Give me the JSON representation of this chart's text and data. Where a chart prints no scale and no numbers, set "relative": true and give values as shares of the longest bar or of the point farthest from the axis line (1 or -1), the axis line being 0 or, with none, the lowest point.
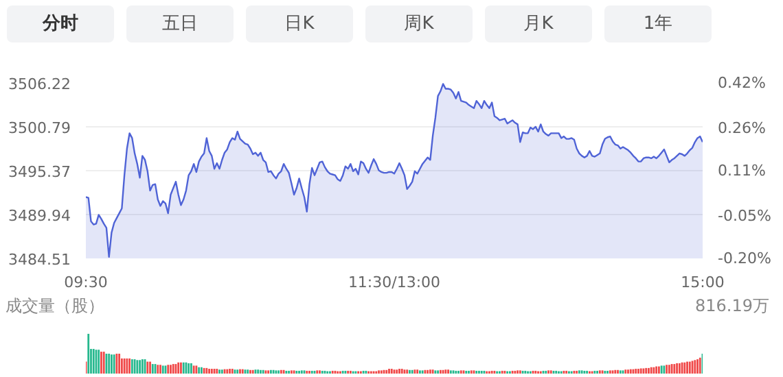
{
  "chart_data": [
    {
      "type": "other",
      "annotations": [
        "分时",
        "五日",
        "日K",
        "周K",
        "月K",
        "1年"
      ]
    },
    {
      "type": "area",
      "color": "#4f63d6",
      "grid": "y",
      "categories": [
        "09:30",
        null,
        null,
        null,
        null,
        null,
        null,
        null,
        null,
        null,
        null,
        null,
        null,
        null,
        null,
        null,
        null,
        null,
        null,
        null,
        null,
        null,
        null,
        null,
        null,
        null,
        null,
        null,
        null,
        null,
        null,
        null,
        null,
        null,
        null,
        null,
        null,
        null,
        null,
        null,
        null,
        null,
        null,
        null,
        null,
        null,
        null,
        null,
        null,
        null,
        null,
        null,
        null,
        null,
        null,
        null,
        null,
        null,
        null,
        null,
        null,
        null,
        null,
        null,
        null,
        null,
        null,
        null,
        null,
        null,
        null,
        null,
        null,
        null,
        null,
        null,
        null,
        null,
        null,
        null,
        null,
        null,
        null,
        null,
        null,
        null,
        null,
        null,
        null,
        null,
        null,
        null,
        null,
        null,
        null,
        null,
        null,
        null,
        null,
        null,
        null,
        null,
        null,
        null,
        null,
        null,
        null,
        null,
        null,
        null,
        null,
        null,
        null,
        null,
        null,
        null,
        null,
        null,
        null,
        null,
        "11:30/13:00",
        null,
        null,
        null,
        null,
        null,
        null,
        null,
        null,
        null,
        null,
        null,
        null,
        null,
        null,
        null,
        null,
        null,
        null,
        null,
        null,
        null,
        null,
        null,
        null,
        null,
        null,
        null,
        null,
        null,
        null,
        null,
        null,
        null,
        null,
        null,
        null,
        null,
        null,
        null,
        null,
        null,
        null,
        null,
        null,
        null,
        null,
        null,
        null,
        null,
        null,
        null,
        null,
        null,
        null,
        null,
        null,
        null,
        null,
        null,
        null,
        null,
        null,
        null,
        null,
        null,
        null,
        null,
        null,
        null,
        null,
        null,
        null,
        null,
        null,
        null,
        null,
        null,
        null,
        null,
        null,
        null,
        null,
        null,
        null,
        null,
        null,
        null,
        null,
        null,
        null,
        null,
        null,
        null,
        null,
        null,
        null,
        null,
        null,
        null,
        null,
        null,
        null,
        null,
        null,
        null,
        null,
        null,
        null,
        null,
        null,
        null,
        null,
        null,
        null,
        null,
        null,
        null,
        null,
        null,
        "15:00"
      ],
      "ylim": [
        3484.51,
        3506.22
      ],
      "yticks": [
        3484.51,
        3489.94,
        3495.37,
        3500.79,
        3506.22
      ],
      "y2lim": [
        -0.2,
        0.42
      ],
      "y2ticks": [
        {
          "value": -0.2,
          "label": "-0.20%"
        },
        {
          "value": -0.05,
          "label": "-0.05%"
        },
        {
          "value": 0.11,
          "label": "0.11%"
        },
        {
          "value": 0.26,
          "label": "0.26%"
        },
        {
          "value": 0.42,
          "label": "0.42%"
        }
      ],
      "values": [
        3492.1,
        3492.0,
        3489.1,
        3488.7,
        3488.8,
        3489.9,
        3489.4,
        3488.8,
        3488.3,
        3484.7,
        3487.7,
        3488.9,
        3489.5,
        3490.1,
        3490.7,
        3494.8,
        3498.1,
        3500.0,
        3499.4,
        3497.5,
        3496.2,
        3494.5,
        3497.2,
        3496.7,
        3495.3,
        3492.9,
        3493.6,
        3493.7,
        3491.8,
        3491.0,
        3491.6,
        3491.3,
        3490.1,
        3492.4,
        3493.2,
        3494.0,
        3492.4,
        3491.1,
        3491.8,
        3492.9,
        3494.8,
        3495.3,
        3496.2,
        3495.2,
        3496.5,
        3497.1,
        3497.5,
        3499.4,
        3497.8,
        3497.2,
        3495.6,
        3496.3,
        3495.6,
        3496.7,
        3497.6,
        3498.0,
        3498.9,
        3499.4,
        3499.2,
        3500.2,
        3499.3,
        3499.0,
        3498.7,
        3498.6,
        3498.1,
        3497.4,
        3497.6,
        3497.2,
        3497.6,
        3496.7,
        3496.4,
        3495.2,
        3495.3,
        3494.8,
        3494.4,
        3495.0,
        3495.3,
        3496.2,
        3495.6,
        3495.1,
        3493.8,
        3492.4,
        3493.2,
        3494.4,
        3493.2,
        3492.1,
        3490.3,
        3493.7,
        3495.7,
        3494.8,
        3495.6,
        3496.4,
        3496.5,
        3495.8,
        3495.3,
        3495.0,
        3494.9,
        3494.8,
        3494.3,
        3494.1,
        3494.8,
        3495.9,
        3495.6,
        3496.2,
        3495.3,
        3495.6,
        3494.9,
        3496.5,
        3496.3,
        3495.6,
        3495.1,
        3496.0,
        3496.8,
        3496.2,
        3495.4,
        3495.2,
        3495.1,
        3495.1,
        3495.2,
        3495.2,
        3495.0,
        3495.6,
        3496.3,
        3495.6,
        3494.8,
        3493.1,
        3493.5,
        3494.0,
        3495.3,
        3495.0,
        3495.6,
        3496.2,
        3496.6,
        3497.0,
        3496.7,
        3499.7,
        3501.9,
        3504.6,
        3505.2,
        3506.1,
        3505.5,
        3505.5,
        3505.4,
        3505.0,
        3504.3,
        3505.1,
        3504.0,
        3503.9,
        3503.8,
        3503.5,
        3503.3,
        3503.1,
        3504.0,
        3503.6,
        3503.1,
        3504.0,
        3503.5,
        3503.1,
        3503.8,
        3502.1,
        3501.9,
        3501.6,
        3501.7,
        3501.8,
        3501.2,
        3501.4,
        3501.6,
        3501.3,
        3501.1,
        3498.9,
        3500.1,
        3500.0,
        3500.0,
        3500.7,
        3500.5,
        3500.8,
        3500.2,
        3501.1,
        3500.2,
        3499.9,
        3499.7,
        3500.0,
        3500.0,
        3500.0,
        3500.0,
        3499.4,
        3499.6,
        3499.3,
        3499.3,
        3499.4,
        3499.2,
        3498.1,
        3497.5,
        3497.2,
        3497.0,
        3497.2,
        3497.8,
        3497.2,
        3497.1,
        3497.3,
        3497.5,
        3498.6,
        3499.3,
        3499.5,
        3499.6,
        3499.0,
        3498.6,
        3498.5,
        3498.1,
        3498.3,
        3498.1,
        3497.9,
        3497.6,
        3497.2,
        3496.9,
        3496.5,
        3496.5,
        3496.9,
        3497.0,
        3497.0,
        3496.9,
        3497.1,
        3496.9,
        3497.2,
        3497.6,
        3498.0,
        3497.2,
        3496.4,
        3496.7,
        3496.9,
        3497.2,
        3497.5,
        3497.4,
        3497.2,
        3497.5,
        3497.9,
        3498.2,
        3498.9,
        3499.4,
        3499.6,
        3498.9
      ]
    },
    {
      "type": "bar",
      "title": "成交量（股）",
      "annotations": [
        "816.19万"
      ],
      "relative": true,
      "categories": [
        null,
        null,
        null,
        null,
        null,
        null,
        null,
        null,
        null,
        null,
        null,
        null,
        null,
        null,
        null,
        null,
        null,
        null,
        null,
        null,
        null,
        null,
        null,
        null,
        null,
        null,
        null,
        null,
        null,
        null,
        null,
        null,
        null,
        null,
        null,
        null,
        null,
        null,
        null,
        null,
        null,
        null,
        null,
        null,
        null,
        null,
        null,
        null,
        null,
        null,
        null,
        null,
        null,
        null,
        null,
        null,
        null,
        null,
        null,
        null,
        null,
        null,
        null,
        null,
        null,
        null,
        null,
        null,
        null,
        null,
        null,
        null,
        null,
        null,
        null,
        null,
        null,
        null,
        null,
        null,
        null,
        null,
        null,
        null,
        null,
        null,
        null,
        null,
        null,
        null,
        null,
        null,
        null,
        null,
        null,
        null,
        null,
        null,
        null,
        null,
        null,
        null,
        null,
        null,
        null,
        null,
        null,
        null,
        null,
        null,
        null,
        null,
        null,
        null,
        null,
        null,
        null,
        null,
        null,
        null,
        null,
        null,
        null,
        null,
        null,
        null,
        null,
        null,
        null,
        null,
        null,
        null,
        null,
        null,
        null,
        null,
        null,
        null,
        null,
        null,
        null,
        null,
        null,
        null,
        null,
        null,
        null,
        null,
        null,
        null,
        null,
        null,
        null,
        null,
        null,
        null,
        null,
        null,
        null,
        null,
        null,
        null,
        null,
        null,
        null,
        null,
        null,
        null,
        null,
        null,
        null,
        null,
        null,
        null,
        null,
        null,
        null,
        null,
        null,
        null,
        null,
        null,
        null,
        null,
        null,
        null,
        null,
        null,
        null,
        null,
        null,
        null,
        null,
        null,
        null,
        null,
        null,
        null,
        null,
        null,
        null,
        null,
        null,
        null,
        null,
        null,
        null,
        null,
        null,
        null,
        null,
        null,
        null,
        null,
        null,
        null,
        null,
        null,
        null,
        null,
        null,
        null,
        null,
        null,
        null,
        null,
        null,
        null,
        null,
        null,
        null,
        null,
        null,
        null,
        null,
        null,
        null,
        null,
        null,
        null,
        null
      ],
      "values": [
        0.3,
        1.0,
        0.62,
        0.62,
        0.6,
        0.6,
        0.55,
        0.55,
        0.5,
        0.5,
        0.48,
        0.48,
        0.5,
        0.5,
        0.38,
        0.38,
        0.38,
        0.38,
        0.36,
        0.36,
        0.34,
        0.34,
        0.36,
        0.36,
        0.3,
        0.3,
        0.24,
        0.24,
        0.22,
        0.22,
        0.2,
        0.2,
        0.22,
        0.22,
        0.24,
        0.24,
        0.28,
        0.28,
        0.28,
        0.28,
        0.26,
        0.26,
        0.2,
        0.2,
        0.16,
        0.16,
        0.14,
        0.14,
        0.12,
        0.12,
        0.12,
        0.12,
        0.1,
        0.1,
        0.11,
        0.11,
        0.12,
        0.12,
        0.1,
        0.1,
        0.11,
        0.11,
        0.1,
        0.1,
        0.09,
        0.09,
        0.1,
        0.1,
        0.09,
        0.09,
        0.08,
        0.08,
        0.09,
        0.09,
        0.08,
        0.08,
        0.09,
        0.09,
        0.07,
        0.07,
        0.08,
        0.08,
        0.07,
        0.07,
        0.08,
        0.08,
        0.07,
        0.07,
        0.07,
        0.07,
        0.08,
        0.08,
        0.07,
        0.07,
        0.06,
        0.06,
        0.07,
        0.07,
        0.06,
        0.06,
        0.07,
        0.07,
        0.07,
        0.07,
        0.06,
        0.06,
        0.06,
        0.06,
        0.07,
        0.07,
        0.06,
        0.06,
        0.06,
        0.06,
        0.08,
        0.08,
        0.09,
        0.09,
        0.12,
        0.12,
        0.1,
        0.1,
        0.12,
        0.12,
        0.1,
        0.1,
        0.09,
        0.09,
        0.1,
        0.1,
        0.08,
        0.08,
        0.09,
        0.09,
        0.1,
        0.1,
        0.08,
        0.08,
        0.09,
        0.09,
        0.1,
        0.1,
        0.08,
        0.08,
        0.07,
        0.07,
        0.08,
        0.08,
        0.07,
        0.07,
        0.08,
        0.08,
        0.07,
        0.07,
        0.07,
        0.07,
        0.06,
        0.06,
        0.07,
        0.07,
        0.06,
        0.06,
        0.07,
        0.07,
        0.06,
        0.06,
        0.07,
        0.07,
        0.08,
        0.08,
        0.07,
        0.07,
        0.06,
        0.06,
        0.07,
        0.07,
        0.06,
        0.06,
        0.07,
        0.07,
        0.08,
        0.08,
        0.07,
        0.07,
        0.06,
        0.06,
        0.07,
        0.07,
        0.06,
        0.06,
        0.07,
        0.07,
        0.08,
        0.08,
        0.07,
        0.07,
        0.06,
        0.06,
        0.07,
        0.07,
        0.08,
        0.08,
        0.07,
        0.07,
        0.08,
        0.08,
        0.09,
        0.09,
        0.08,
        0.08,
        0.1,
        0.1,
        0.11,
        0.11,
        0.12,
        0.12,
        0.13,
        0.13,
        0.14,
        0.14,
        0.16,
        0.16,
        0.18,
        0.18,
        0.2,
        0.2,
        0.22,
        0.22,
        0.24,
        0.24,
        0.26,
        0.26,
        0.28,
        0.28,
        0.3,
        0.3,
        0.32,
        0.34,
        0.36,
        0.4,
        0.5
      ],
      "colors": [
        "#f04848",
        "#26b88e",
        "#26b88e",
        "#26b88e",
        "#26b88e",
        "#26b88e",
        "#f04848",
        "#f04848",
        "#26b88e",
        "#26b88e",
        "#26b88e",
        "#26b88e",
        "#f04848",
        "#f04848",
        "#f04848",
        "#f04848",
        "#f04848",
        "#f04848",
        "#26b88e",
        "#26b88e",
        "#26b88e",
        "#26b88e",
        "#26b88e",
        "#26b88e",
        "#f04848",
        "#f04848",
        "#26b88e",
        "#26b88e",
        "#f04848",
        "#f04848",
        "#26b88e",
        "#26b88e",
        "#f04848",
        "#f04848",
        "#f04848",
        "#f04848",
        "#f04848",
        "#f04848",
        "#26b88e",
        "#26b88e",
        "#26b88e",
        "#26b88e",
        "#f04848",
        "#f04848",
        "#26b88e",
        "#26b88e",
        "#f04848",
        "#f04848",
        "#f04848",
        "#f04848",
        "#f04848",
        "#f04848",
        "#26b88e",
        "#26b88e",
        "#f04848",
        "#f04848",
        "#f04848",
        "#f04848",
        "#26b88e",
        "#26b88e",
        "#f04848",
        "#f04848",
        "#26b88e",
        "#26b88e",
        "#f04848",
        "#f04848",
        "#26b88e",
        "#26b88e",
        "#26b88e",
        "#26b88e",
        "#f04848",
        "#f04848",
        "#26b88e",
        "#26b88e",
        "#26b88e",
        "#26b88e",
        "#f04848",
        "#f04848",
        "#26b88e",
        "#26b88e",
        "#f04848",
        "#f04848",
        "#26b88e",
        "#26b88e",
        "#26b88e",
        "#26b88e",
        "#f04848",
        "#f04848",
        "#26b88e",
        "#26b88e",
        "#f04848",
        "#f04848",
        "#26b88e",
        "#26b88e",
        "#26b88e",
        "#26b88e",
        "#f04848",
        "#f04848",
        "#f04848",
        "#f04848",
        "#26b88e",
        "#26b88e",
        "#f04848",
        "#f04848",
        "#26b88e",
        "#26b88e",
        "#f04848",
        "#f04848",
        "#26b88e",
        "#26b88e",
        "#f04848",
        "#f04848",
        "#f04848",
        "#f04848",
        "#f04848",
        "#f04848",
        "#f04848",
        "#f04848",
        "#f04848",
        "#f04848",
        "#f04848",
        "#f04848",
        "#f04848",
        "#f04848",
        "#f04848",
        "#f04848",
        "#26b88e",
        "#26b88e",
        "#f04848",
        "#f04848",
        "#26b88e",
        "#26b88e",
        "#f04848",
        "#f04848",
        "#f04848",
        "#f04848",
        "#26b88e",
        "#26b88e",
        "#f04848",
        "#f04848",
        "#f04848",
        "#f04848",
        "#26b88e",
        "#26b88e",
        "#26b88e",
        "#26b88e",
        "#f04848",
        "#f04848",
        "#26b88e",
        "#26b88e",
        "#f04848",
        "#f04848",
        "#26b88e",
        "#26b88e",
        "#26b88e",
        "#26b88e",
        "#f04848",
        "#f04848",
        "#f04848",
        "#f04848",
        "#26b88e",
        "#26b88e",
        "#f04848",
        "#f04848",
        "#26b88e",
        "#26b88e",
        "#f04848",
        "#f04848",
        "#f04848",
        "#f04848",
        "#26b88e",
        "#26b88e",
        "#26b88e",
        "#26b88e",
        "#f04848",
        "#f04848",
        "#f04848",
        "#f04848",
        "#26b88e",
        "#26b88e",
        "#f04848",
        "#f04848",
        "#26b88e",
        "#26b88e",
        "#26b88e",
        "#26b88e",
        "#f04848",
        "#f04848",
        "#26b88e",
        "#26b88e",
        "#f04848",
        "#f04848",
        "#26b88e",
        "#26b88e",
        "#26b88e",
        "#26b88e",
        "#f04848",
        "#f04848",
        "#26b88e",
        "#26b88e",
        "#f04848",
        "#f04848",
        "#26b88e",
        "#26b88e",
        "#f04848",
        "#f04848",
        "#f04848",
        "#f04848",
        "#26b88e",
        "#26b88e",
        "#f04848",
        "#f04848",
        "#f04848",
        "#f04848",
        "#f04848",
        "#f04848",
        "#f04848",
        "#f04848",
        "#f04848",
        "#f04848",
        "#f04848",
        "#f04848",
        "#f04848",
        "#f04848",
        "#26b88e",
        "#26b88e",
        "#f04848",
        "#f04848",
        "#f04848",
        "#f04848",
        "#f04848",
        "#f04848",
        "#f04848",
        "#f04848",
        "#f04848",
        "#f04848",
        "#f04848",
        "#f04848",
        "#f04848",
        "#f04848",
        "#26b88e"
      ]
    }
  ]
}
